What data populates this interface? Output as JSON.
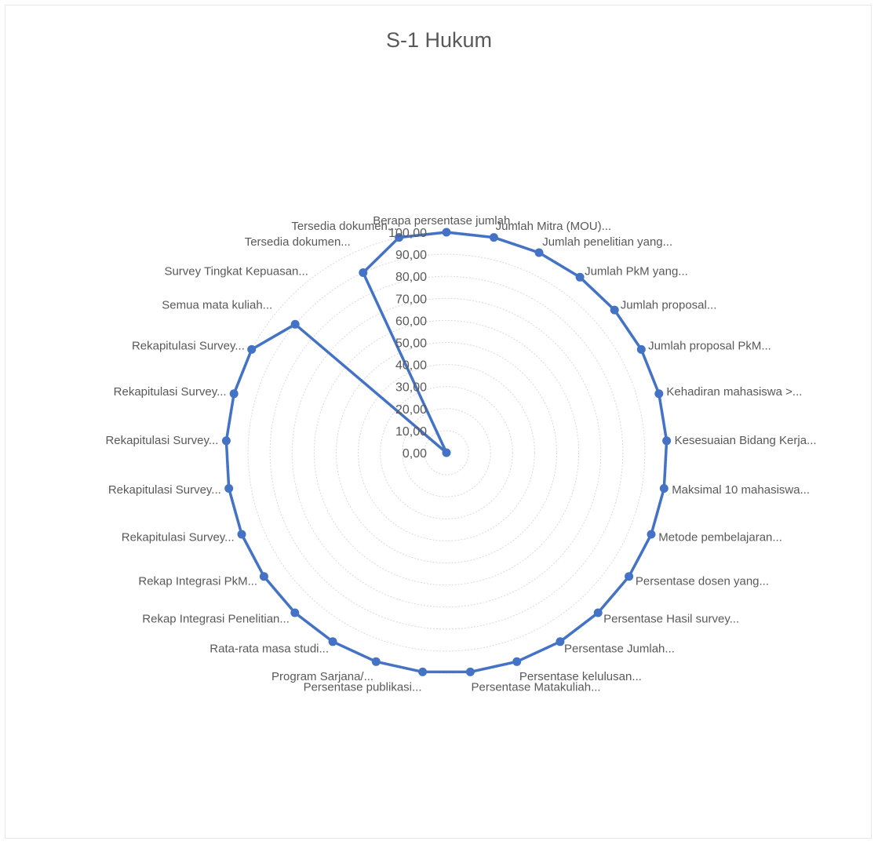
{
  "chart_data": {
    "type": "radar",
    "title": "S-1 Hukum",
    "r_range": [
      0,
      100
    ],
    "r_ticks": [
      "0,00",
      "10,00",
      "20,00",
      "30,00",
      "40,00",
      "50,00",
      "60,00",
      "70,00",
      "80,00",
      "90,00",
      "100,00"
    ],
    "legend": "none",
    "grid": true,
    "line_color": "#4472c4",
    "categories": [
      "Berapa persentase jumlah...",
      "Jumlah Mitra (MOU)...",
      "Jumlah penelitian yang...",
      "Jumlah PkM yang...",
      "Jumlah proposal...",
      "Jumlah proposal PkM...",
      "Kehadiran mahasiswa >...",
      "Kesesuaian Bidang Kerja...",
      "Maksimal 10 mahasiswa...",
      "Metode pembelajaran...",
      "Persentase dosen yang...",
      "Persentase Hasil survey...",
      "Persentase Jumlah...",
      "Persentase kelulusan...",
      "Persentase Matakuliah...",
      "Persentase publikasi...",
      "Program Sarjana/...",
      "Rata-rata masa studi...",
      "Rekap Integrasi Penelitian...",
      "Rekap Integrasi PkM...",
      "Rekapitulasi Survey...",
      "Rekapitulasi Survey...",
      "Rekapitulasi Survey...",
      "Rekapitulasi Survey...",
      "Rekapitulasi Survey...",
      "Semua mata kuliah...",
      "Survey Tingkat Kepuasan...",
      "Tersedia dokumen...",
      "Tersedia dokumen..."
    ],
    "values": [
      100,
      100,
      100,
      100,
      100,
      100,
      100,
      100,
      100,
      100,
      100,
      100,
      100,
      100,
      100,
      100,
      100,
      100,
      100,
      100,
      100,
      100,
      100,
      100,
      100,
      90,
      0,
      90,
      100
    ]
  }
}
